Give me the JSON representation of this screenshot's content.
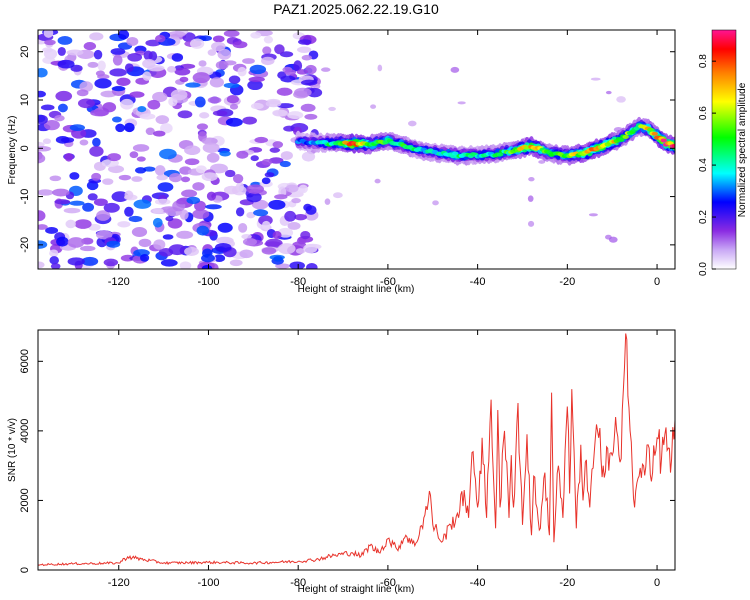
{
  "title": "PAZ1.2025.062.22.19.G10",
  "chart_data": [
    {
      "type": "heatmap",
      "title": "PAZ1.2025.062.22.19.G10",
      "xlabel": "Height of straight line (km)",
      "ylabel": "Frequency (Hz)",
      "xlim": [
        -138,
        4
      ],
      "ylim": [
        -25,
        24.5
      ],
      "x_ticks": [
        -120,
        -100,
        -80,
        -60,
        -40,
        -20,
        0
      ],
      "y_ticks": [
        -20,
        -10,
        0,
        10,
        20
      ],
      "colorbar": {
        "label": "Normalized spectral amplitude",
        "range": [
          0,
          0.92
        ],
        "ticks": [
          0.0,
          0.2,
          0.4,
          0.6,
          0.8
        ],
        "tick_labels": [
          "0.0",
          "0.2",
          "0.4",
          "0.6",
          "0.8"
        ],
        "colors": [
          "#ffffff",
          "#8a2be2",
          "#0000ff",
          "#00ffff",
          "#00ff00",
          "#ffff00",
          "#ff8000",
          "#ff0000",
          "#ff1493"
        ]
      },
      "noise_region_x": [
        -138,
        -76
      ],
      "ridge": {
        "x": [
          -80,
          -76,
          -72,
          -68,
          -64,
          -60,
          -56,
          -52,
          -48,
          -44,
          -40,
          -36,
          -32,
          -28,
          -24,
          -20,
          -16,
          -12,
          -8,
          -4,
          -2,
          0,
          2,
          4
        ],
        "y": [
          1.5,
          1.2,
          1.0,
          1.0,
          0.8,
          1.5,
          0.5,
          -0.5,
          -1.0,
          -1.5,
          -1.5,
          -1.2,
          -0.5,
          0.5,
          -1.0,
          -1.5,
          -1.0,
          0.5,
          2.0,
          4.5,
          4.0,
          2.5,
          1.0,
          0.5
        ],
        "amplitude": [
          0.3,
          0.35,
          0.5,
          0.85,
          0.6,
          0.55,
          0.5,
          0.4,
          0.45,
          0.5,
          0.4,
          0.45,
          0.55,
          0.8,
          0.5,
          0.6,
          0.7,
          0.8,
          0.6,
          0.55,
          0.7,
          0.8,
          0.9,
          0.85
        ]
      }
    },
    {
      "type": "line",
      "xlabel": "Height of straight line (km)",
      "ylabel": "SNR (10 * v/v)",
      "xlim": [
        -138,
        4
      ],
      "ylim": [
        0,
        6900
      ],
      "x_ticks": [
        -120,
        -100,
        -80,
        -60,
        -40,
        -20,
        0
      ],
      "y_ticks": [
        0,
        2000,
        4000,
        6000
      ],
      "series": [
        {
          "color": "#e8332b",
          "x": [
            -138,
            -130,
            -120,
            -118,
            -110,
            -100,
            -90,
            -80,
            -76,
            -72,
            -68,
            -66,
            -64,
            -62,
            -60,
            -58,
            -56,
            -54,
            -52,
            -50.5,
            -50,
            -49,
            -48,
            -46,
            -44,
            -43,
            -42,
            -41,
            -40,
            -39,
            -38,
            -37,
            -36,
            -35.5,
            -35,
            -34,
            -33,
            -32.5,
            -32,
            -31,
            -30,
            -29,
            -28,
            -27.5,
            -27,
            -26,
            -25,
            -24,
            -23.5,
            -23,
            -22,
            -21,
            -20,
            -19.5,
            -19,
            -18,
            -17,
            -16.5,
            -16,
            -15,
            -14,
            -13,
            -12,
            -11,
            -10,
            -9,
            -8,
            -7.5,
            -7,
            -6.5,
            -6,
            -5,
            -4,
            -3,
            -2,
            -1,
            0,
            1,
            2,
            3,
            4
          ],
          "y": [
            150,
            180,
            200,
            380,
            200,
            220,
            200,
            250,
            300,
            420,
            500,
            400,
            700,
            500,
            900,
            600,
            1000,
            700,
            1500,
            2150,
            1300,
            1100,
            800,
            1300,
            1700,
            2300,
            1500,
            3400,
            1800,
            3800,
            1500,
            4900,
            1200,
            4600,
            1800,
            4000,
            1500,
            3300,
            1800,
            4800,
            1300,
            3900,
            1000,
            2700,
            1900,
            1200,
            2800,
            1000,
            5100,
            800,
            3000,
            1500,
            4700,
            2200,
            5200,
            1200,
            3600,
            2000,
            3100,
            1800,
            3400,
            3800,
            3000,
            3500,
            3300,
            4000,
            3200,
            5200,
            6800,
            5000,
            4000,
            1800,
            2700,
            3000,
            3600,
            2800,
            3800,
            3200,
            4100,
            2800,
            4300
          ]
        }
      ]
    }
  ]
}
